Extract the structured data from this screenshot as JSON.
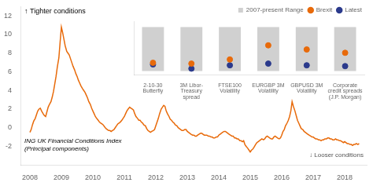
{
  "chart_data": [
    {
      "type": "line",
      "x": [
        2008.0,
        2008.04,
        2008.08,
        2008.12,
        2008.17,
        2008.21,
        2008.25,
        2008.29,
        2008.33,
        2008.37,
        2008.42,
        2008.46,
        2008.5,
        2008.54,
        2008.58,
        2008.62,
        2008.67,
        2008.71,
        2008.75,
        2008.79,
        2008.83,
        2008.87,
        2008.92,
        2008.96,
        2009.0,
        2009.04,
        2009.08,
        2009.12,
        2009.17,
        2009.21,
        2009.25,
        2009.29,
        2009.33,
        2009.37,
        2009.42,
        2009.46,
        2009.5,
        2009.54,
        2009.58,
        2009.62,
        2009.67,
        2009.71,
        2009.75,
        2009.79,
        2009.83,
        2009.87,
        2009.92,
        2009.96,
        2010.0,
        2010.04,
        2010.08,
        2010.12,
        2010.17,
        2010.21,
        2010.25,
        2010.29,
        2010.33,
        2010.37,
        2010.42,
        2010.46,
        2010.5,
        2010.54,
        2010.58,
        2010.62,
        2010.67,
        2010.71,
        2010.75,
        2010.79,
        2010.83,
        2010.87,
        2010.92,
        2010.96,
        2011.0,
        2011.04,
        2011.08,
        2011.12,
        2011.17,
        2011.21,
        2011.25,
        2011.29,
        2011.33,
        2011.37,
        2011.42,
        2011.46,
        2011.5,
        2011.54,
        2011.58,
        2011.62,
        2011.67,
        2011.71,
        2011.75,
        2011.79,
        2011.83,
        2011.87,
        2011.92,
        2011.96,
        2012.0,
        2012.04,
        2012.08,
        2012.12,
        2012.17,
        2012.21,
        2012.25,
        2012.29,
        2012.33,
        2012.37,
        2012.42,
        2012.46,
        2012.5,
        2012.54,
        2012.58,
        2012.62,
        2012.67,
        2012.71,
        2012.75,
        2012.79,
        2012.83,
        2012.87,
        2012.92,
        2012.96,
        2013.0,
        2013.04,
        2013.08,
        2013.12,
        2013.17,
        2013.21,
        2013.25,
        2013.29,
        2013.33,
        2013.37,
        2013.42,
        2013.46,
        2013.5,
        2013.54,
        2013.58,
        2013.62,
        2013.67,
        2013.71,
        2013.75,
        2013.79,
        2013.83,
        2013.87,
        2013.92,
        2013.96,
        2014.0,
        2014.04,
        2014.08,
        2014.12,
        2014.17,
        2014.21,
        2014.25,
        2014.29,
        2014.33,
        2014.37,
        2014.42,
        2014.46,
        2014.5,
        2014.54,
        2014.58,
        2014.62,
        2014.67,
        2014.71,
        2014.75,
        2014.79,
        2014.83,
        2014.87,
        2014.92,
        2014.96,
        2015.0,
        2015.04,
        2015.08,
        2015.12,
        2015.17,
        2015.21,
        2015.25,
        2015.29,
        2015.33,
        2015.37,
        2015.42,
        2015.46,
        2015.5,
        2015.54,
        2015.58,
        2015.62,
        2015.67,
        2015.71,
        2015.75,
        2015.79,
        2015.83,
        2015.87,
        2015.92,
        2015.96,
        2016.0,
        2016.04,
        2016.08,
        2016.12,
        2016.17,
        2016.21,
        2016.25,
        2016.29,
        2016.33,
        2016.37,
        2016.42,
        2016.46,
        2016.5,
        2016.54,
        2016.58,
        2016.62,
        2016.67,
        2016.71,
        2016.75,
        2016.79,
        2016.83,
        2016.87,
        2016.92,
        2016.96,
        2017.0,
        2017.04,
        2017.08,
        2017.12,
        2017.17,
        2017.21,
        2017.25,
        2017.29,
        2017.33,
        2017.37,
        2017.42,
        2017.46,
        2017.5,
        2017.54,
        2017.58,
        2017.62,
        2017.67,
        2017.71,
        2017.75,
        2017.79,
        2017.83,
        2017.87,
        2017.92,
        2017.96,
        2018.0,
        2018.04,
        2018.08,
        2018.12,
        2018.17,
        2018.21,
        2018.25,
        2018.29,
        2018.33,
        2018.37,
        2018.42,
        2018.46
      ],
      "values": [
        -0.5,
        -0.2,
        0.3,
        0.7,
        1.0,
        1.4,
        1.8,
        2.0,
        2.1,
        1.8,
        1.5,
        1.3,
        1.2,
        1.7,
        2.2,
        2.5,
        2.8,
        3.3,
        3.9,
        4.7,
        5.5,
        6.5,
        7.5,
        9.2,
        10.8,
        10.2,
        9.5,
        8.8,
        8.2,
        8.0,
        7.8,
        7.4,
        7.0,
        6.6,
        6.2,
        5.8,
        5.5,
        5.1,
        4.8,
        4.5,
        4.2,
        4.0,
        3.8,
        3.5,
        3.2,
        2.8,
        2.5,
        2.1,
        1.8,
        1.5,
        1.2,
        1.0,
        0.8,
        0.6,
        0.5,
        0.4,
        0.3,
        0.1,
        -0.1,
        -0.2,
        -0.3,
        -0.3,
        -0.4,
        -0.3,
        -0.2,
        0.0,
        0.2,
        0.4,
        0.5,
        0.6,
        0.8,
        1.0,
        1.2,
        1.5,
        1.8,
        2.0,
        2.2,
        2.1,
        2.0,
        1.9,
        1.5,
        1.2,
        1.0,
        0.8,
        0.8,
        0.6,
        0.5,
        0.3,
        0.2,
        -0.1,
        -0.3,
        -0.4,
        -0.5,
        -0.4,
        -0.3,
        -0.2,
        0.2,
        0.6,
        1.0,
        1.5,
        2.0,
        2.2,
        2.4,
        2.3,
        1.8,
        1.5,
        1.2,
        0.9,
        0.8,
        0.6,
        0.5,
        0.3,
        0.2,
        0.0,
        -0.1,
        -0.2,
        -0.3,
        -0.3,
        -0.2,
        -0.2,
        -0.4,
        -0.5,
        -0.6,
        -0.7,
        -0.8,
        -0.8,
        -0.9,
        -0.9,
        -0.8,
        -0.7,
        -0.6,
        -0.6,
        -0.7,
        -0.8,
        -0.8,
        -0.8,
        -0.9,
        -0.9,
        -1.0,
        -1.0,
        -1.1,
        -1.1,
        -1.0,
        -1.0,
        -0.8,
        -0.7,
        -0.6,
        -0.5,
        -0.4,
        -0.4,
        -0.5,
        -0.6,
        -0.7,
        -0.8,
        -0.9,
        -0.9,
        -1.1,
        -1.1,
        -1.2,
        -1.2,
        -1.4,
        -1.4,
        -1.5,
        -1.4,
        -1.8,
        -2.0,
        -2.2,
        -2.4,
        -2.6,
        -2.4,
        -2.3,
        -2.1,
        -1.8,
        -1.6,
        -1.5,
        -1.4,
        -1.3,
        -1.2,
        -1.3,
        -1.2,
        -1.0,
        -0.9,
        -1.0,
        -1.1,
        -1.2,
        -1.2,
        -1.0,
        -0.9,
        -1.0,
        -1.1,
        -1.2,
        -1.1,
        -0.8,
        -0.4,
        -0.2,
        0.2,
        0.5,
        0.8,
        1.2,
        1.8,
        2.8,
        2.3,
        1.8,
        1.3,
        0.8,
        0.5,
        0.2,
        -0.1,
        -0.2,
        -0.4,
        -0.5,
        -0.6,
        -0.7,
        -0.8,
        -0.9,
        -1.0,
        -1.0,
        -1.1,
        -1.2,
        -1.2,
        -1.3,
        -1.3,
        -1.4,
        -1.3,
        -1.3,
        -1.2,
        -1.2,
        -1.1,
        -1.1,
        -1.2,
        -1.2,
        -1.3,
        -1.3,
        -1.2,
        -1.3,
        -1.3,
        -1.4,
        -1.4,
        -1.5,
        -1.6,
        -1.5,
        -1.6,
        -1.7,
        -1.7,
        -1.8,
        -1.8,
        -1.9,
        -1.8,
        -1.8,
        -1.7,
        -1.8,
        -1.7
      ],
      "color": "#E86A0A",
      "xlim": [
        2007.7,
        2018.7
      ],
      "xticks": [
        2008,
        2009,
        2010,
        2011,
        2012,
        2013,
        2014,
        2015,
        2016,
        2017,
        2018
      ],
      "ylim": [
        -4,
        13
      ],
      "yticks": [
        -2,
        0,
        2,
        4,
        6,
        8,
        10,
        12
      ],
      "grid": false,
      "annotations": [
        "↑ Tighter conditions",
        "ING UK Financial Conditions Index\n(Principal components)",
        "↓ Looser conditions"
      ]
    },
    {
      "type": "bar",
      "categories": [
        "2-10-30\nButterfly",
        "3M Libor-\nTreasury\nspread",
        "FTSE100\nVolatility",
        "EURGBP 3M\nVolatility",
        "GBPUSD 3M\nVolatility",
        "Corporate\ncredit spreads\n(J.P. Morgan)"
      ],
      "series": [
        {
          "name": "2007-present Range",
          "type": "bar",
          "color": "#d0d0d0",
          "values": [
            [
              6.5,
              11.8
            ],
            [
              6.5,
              11.8
            ],
            [
              6.5,
              11.8
            ],
            [
              6.5,
              11.8
            ],
            [
              6.5,
              11.8
            ],
            [
              6.5,
              11.8
            ]
          ]
        },
        {
          "name": "Brexit",
          "type": "scatter",
          "marker": "circle",
          "color": "#E86A0A",
          "values": [
            7.5,
            7.4,
            7.9,
            9.6,
            9.1,
            8.7
          ]
        },
        {
          "name": "Latest",
          "type": "scatter",
          "marker": "circle",
          "color": "#2B3A8C",
          "values": [
            7.3,
            6.8,
            7.2,
            7.4,
            7.2,
            7.1
          ]
        }
      ],
      "ylim": [
        6.0,
        12.5
      ],
      "tick_labels": "x",
      "grid": false,
      "legend": "top"
    }
  ]
}
